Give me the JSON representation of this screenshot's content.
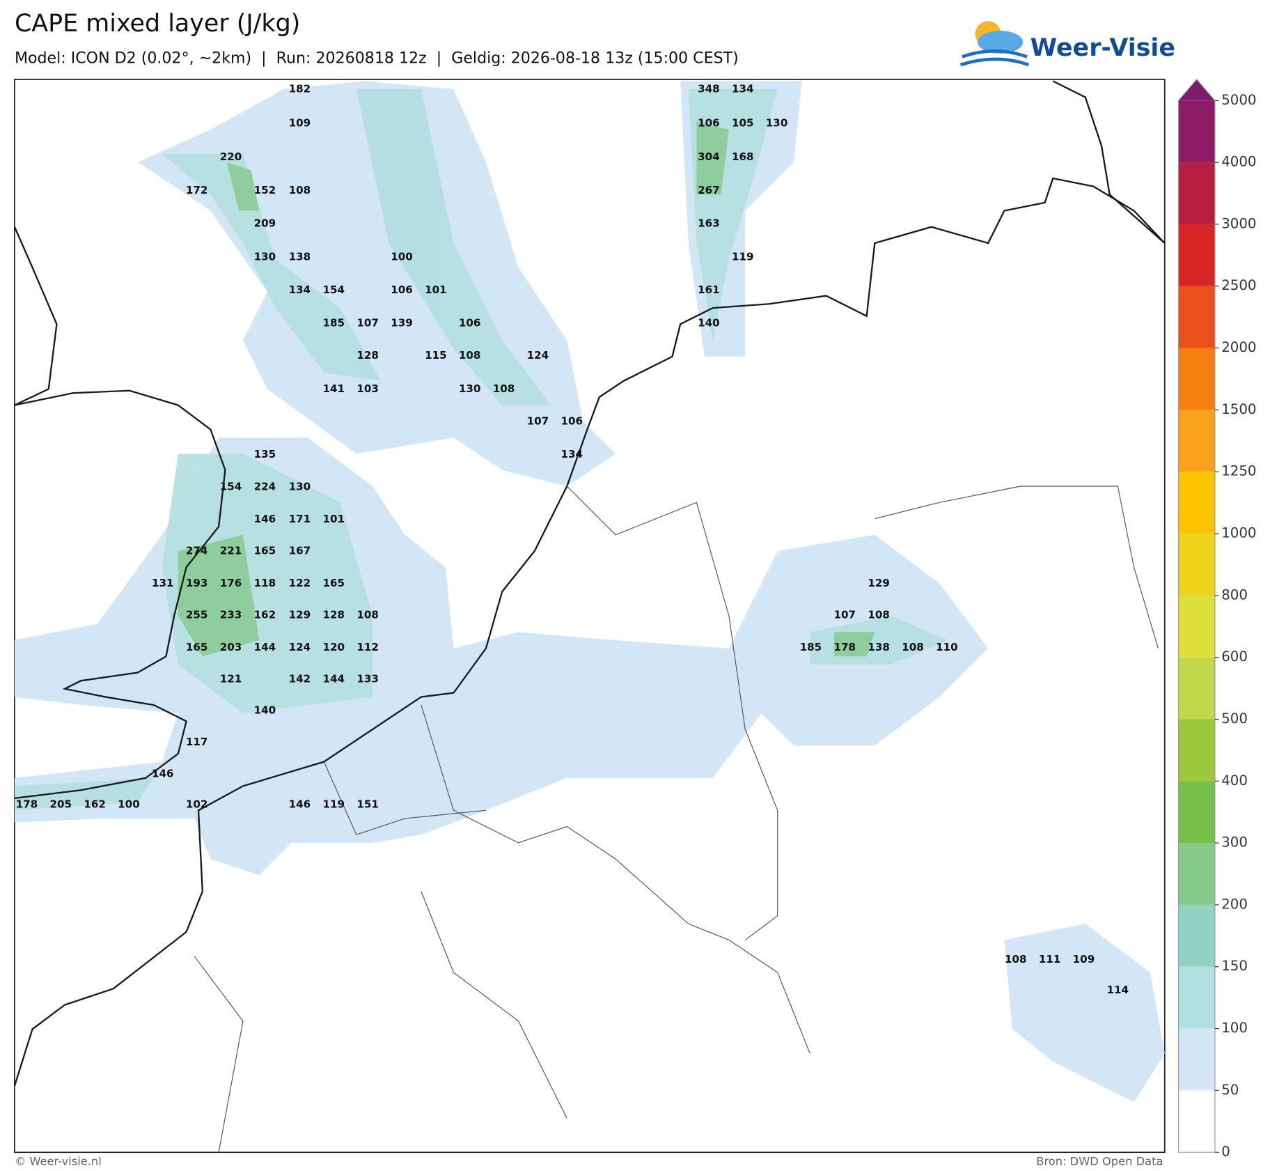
{
  "header": {
    "title": "CAPE mixed layer (J/kg)",
    "subtitle": "Model: ICON D2 (0.02°, ~2km)  |  Run: 20260818 12z  |  Geldig: 2026-08-18 13z (15:00 CEST)",
    "logo": "Weer-Visie"
  },
  "map": {
    "labels": [
      182,
      348,
      134,
      109,
      106,
      105,
      130,
      220,
      304,
      168,
      172,
      152,
      108,
      267,
      209,
      163,
      130,
      138,
      100,
      119,
      134,
      154,
      106,
      101,
      161,
      185,
      107,
      139,
      106,
      140,
      128,
      115,
      108,
      124,
      141,
      103,
      130,
      108,
      107,
      106,
      135,
      134,
      154,
      224,
      130,
      146,
      171,
      101,
      274,
      221,
      165,
      167,
      131,
      193,
      176,
      118,
      122,
      165,
      129,
      255,
      233,
      162,
      129,
      128,
      108,
      107,
      108,
      165,
      203,
      144,
      124,
      120,
      112,
      185,
      178,
      138,
      108,
      110,
      121,
      142,
      144,
      133,
      140,
      117,
      146,
      178,
      205,
      162,
      100,
      102,
      146,
      119,
      151,
      108,
      111,
      109,
      114
    ]
  },
  "colorbar": {
    "ticks": [
      0,
      50,
      100,
      150,
      200,
      300,
      400,
      500,
      600,
      800,
      1000,
      1250,
      1500,
      2000,
      2500,
      3000,
      4000,
      5000
    ],
    "colors": [
      "#ffffff",
      "#d2e6f5",
      "#b2dfe0",
      "#92d2c5",
      "#86c98b",
      "#76c04a",
      "#9cc83c",
      "#c2d84a",
      "#dde03a",
      "#f0d31c",
      "#fcc300",
      "#f9a11a",
      "#f57f10",
      "#e9501b",
      "#d92424",
      "#b81e40",
      "#8c1b68"
    ],
    "over_color": "#7a1b6e"
  },
  "footer": {
    "left": "© Weer-visie.nl",
    "right": "Bron: DWD Open Data"
  }
}
